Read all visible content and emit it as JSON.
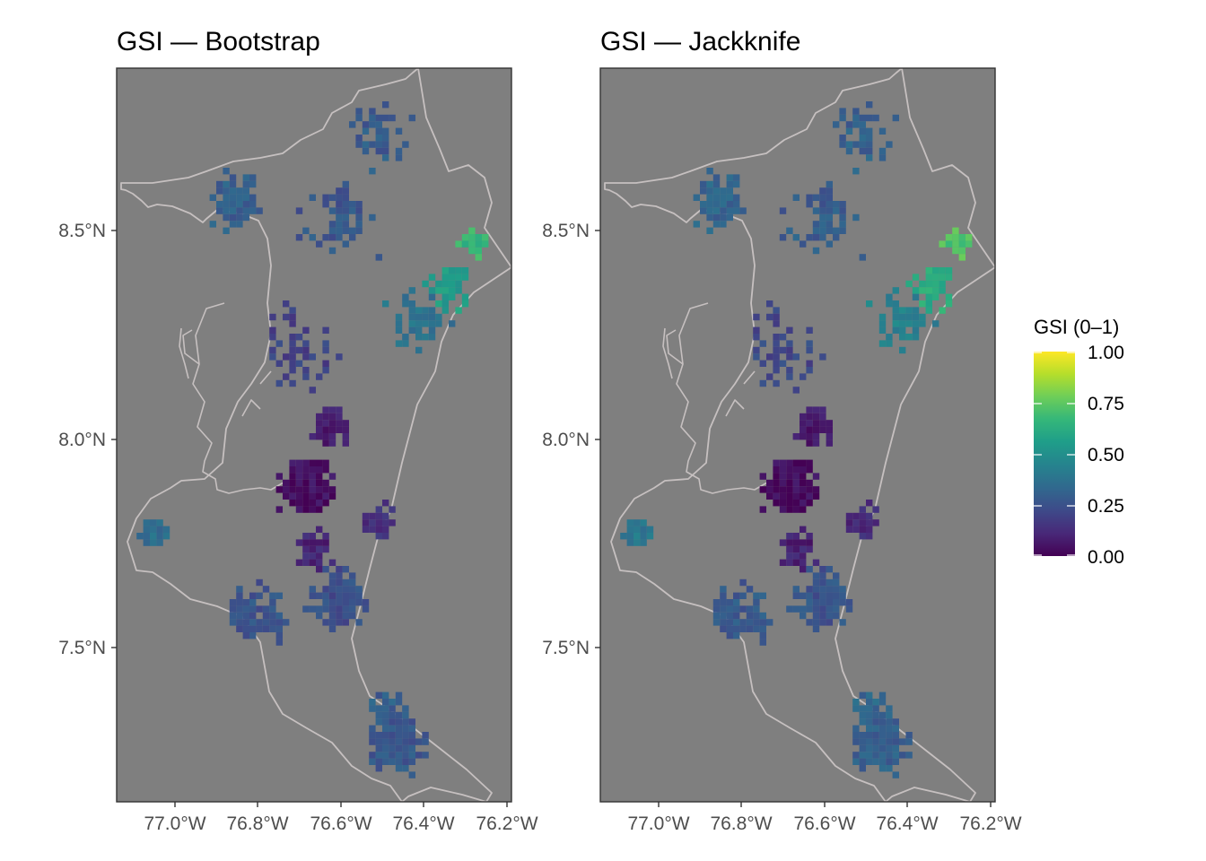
{
  "figure": {
    "panels": [
      {
        "id": "bootstrap",
        "title": "GSI — Bootstrap"
      },
      {
        "id": "jackknife",
        "title": "GSI — Jackknife"
      }
    ],
    "legend": {
      "title": "GSI (0–1)",
      "ticks": [
        "1.00",
        "0.75",
        "0.50",
        "0.25",
        "0.00"
      ],
      "colormap": "viridis"
    }
  },
  "colors": {
    "panel_background": "#7f7f7f",
    "boundary": "#c6c0c0",
    "panel_border": "#333333",
    "viridis": [
      "#440154",
      "#482878",
      "#3e4989",
      "#31688e",
      "#26828e",
      "#1f9e89",
      "#35b779",
      "#6ece58",
      "#b5de2b",
      "#fde725"
    ]
  },
  "chart_data": [
    {
      "type": "heatmap",
      "title": "GSI — Bootstrap",
      "x_ticks": [
        "77.0°W",
        "76.8°W",
        "76.6°W",
        "76.4°W",
        "76.2°W"
      ],
      "y_ticks": [
        "8.5°N",
        "8.0°N",
        "7.5°N"
      ],
      "xlim": [
        -77.14,
        -76.18
      ],
      "ylim": [
        7.14,
        8.86
      ],
      "value_range": [
        0,
        1
      ],
      "clusters": [
        {
          "lon": -76.68,
          "lat": 7.88,
          "spread": 0.07,
          "count": 260,
          "value": 0.04
        },
        {
          "lon": -76.62,
          "lat": 8.02,
          "spread": 0.05,
          "count": 90,
          "value": 0.08
        },
        {
          "lon": -76.66,
          "lat": 7.73,
          "spread": 0.05,
          "count": 70,
          "value": 0.1
        },
        {
          "lon": -76.5,
          "lat": 7.8,
          "spread": 0.05,
          "count": 45,
          "value": 0.14
        },
        {
          "lon": -76.46,
          "lat": 7.27,
          "spread": 0.08,
          "count": 180,
          "value": 0.27
        },
        {
          "lon": -76.48,
          "lat": 7.36,
          "spread": 0.05,
          "count": 45,
          "value": 0.3
        },
        {
          "lon": -76.6,
          "lat": 7.62,
          "spread": 0.09,
          "count": 110,
          "value": 0.24
        },
        {
          "lon": -76.8,
          "lat": 7.58,
          "spread": 0.1,
          "count": 90,
          "value": 0.26
        },
        {
          "lon": -77.05,
          "lat": 7.77,
          "spread": 0.04,
          "count": 35,
          "value": 0.36
        },
        {
          "lon": -76.85,
          "lat": 8.55,
          "spread": 0.08,
          "count": 90,
          "value": 0.3
        },
        {
          "lon": -76.6,
          "lat": 8.5,
          "spread": 0.12,
          "count": 70,
          "value": 0.27
        },
        {
          "lon": -76.5,
          "lat": 8.7,
          "spread": 0.1,
          "count": 45,
          "value": 0.29
        },
        {
          "lon": -76.4,
          "lat": 8.27,
          "spread": 0.09,
          "count": 55,
          "value": 0.38
        },
        {
          "lon": -76.33,
          "lat": 8.34,
          "spread": 0.07,
          "count": 55,
          "value": 0.55
        },
        {
          "lon": -76.27,
          "lat": 8.45,
          "spread": 0.04,
          "count": 30,
          "value": 0.66
        },
        {
          "lon": -76.7,
          "lat": 8.2,
          "spread": 0.12,
          "count": 50,
          "value": 0.2
        }
      ]
    },
    {
      "type": "heatmap",
      "title": "GSI — Jackknife",
      "x_ticks": [
        "77.0°W",
        "76.8°W",
        "76.6°W",
        "76.4°W",
        "76.2°W"
      ],
      "y_ticks": [
        "8.5°N",
        "8.0°N",
        "7.5°N"
      ],
      "xlim": [
        -77.14,
        -76.18
      ],
      "ylim": [
        7.14,
        8.86
      ],
      "value_range": [
        0,
        1
      ],
      "clusters": [
        {
          "lon": -76.68,
          "lat": 7.88,
          "spread": 0.07,
          "count": 260,
          "value": 0.03
        },
        {
          "lon": -76.62,
          "lat": 8.02,
          "spread": 0.05,
          "count": 90,
          "value": 0.07
        },
        {
          "lon": -76.66,
          "lat": 7.73,
          "spread": 0.05,
          "count": 70,
          "value": 0.09
        },
        {
          "lon": -76.5,
          "lat": 7.8,
          "spread": 0.05,
          "count": 45,
          "value": 0.12
        },
        {
          "lon": -76.46,
          "lat": 7.27,
          "spread": 0.08,
          "count": 180,
          "value": 0.3
        },
        {
          "lon": -76.48,
          "lat": 7.36,
          "spread": 0.05,
          "count": 45,
          "value": 0.33
        },
        {
          "lon": -76.6,
          "lat": 7.62,
          "spread": 0.09,
          "count": 110,
          "value": 0.26
        },
        {
          "lon": -76.8,
          "lat": 7.58,
          "spread": 0.1,
          "count": 90,
          "value": 0.28
        },
        {
          "lon": -77.05,
          "lat": 7.77,
          "spread": 0.04,
          "count": 35,
          "value": 0.4
        },
        {
          "lon": -76.85,
          "lat": 8.55,
          "spread": 0.08,
          "count": 90,
          "value": 0.32
        },
        {
          "lon": -76.6,
          "lat": 8.5,
          "spread": 0.12,
          "count": 70,
          "value": 0.29
        },
        {
          "lon": -76.5,
          "lat": 8.7,
          "spread": 0.1,
          "count": 45,
          "value": 0.31
        },
        {
          "lon": -76.4,
          "lat": 8.27,
          "spread": 0.09,
          "count": 55,
          "value": 0.44
        },
        {
          "lon": -76.33,
          "lat": 8.34,
          "spread": 0.07,
          "count": 55,
          "value": 0.62
        },
        {
          "lon": -76.27,
          "lat": 8.45,
          "spread": 0.04,
          "count": 30,
          "value": 0.72
        },
        {
          "lon": -76.7,
          "lat": 8.2,
          "spread": 0.12,
          "count": 50,
          "value": 0.22
        }
      ]
    }
  ]
}
